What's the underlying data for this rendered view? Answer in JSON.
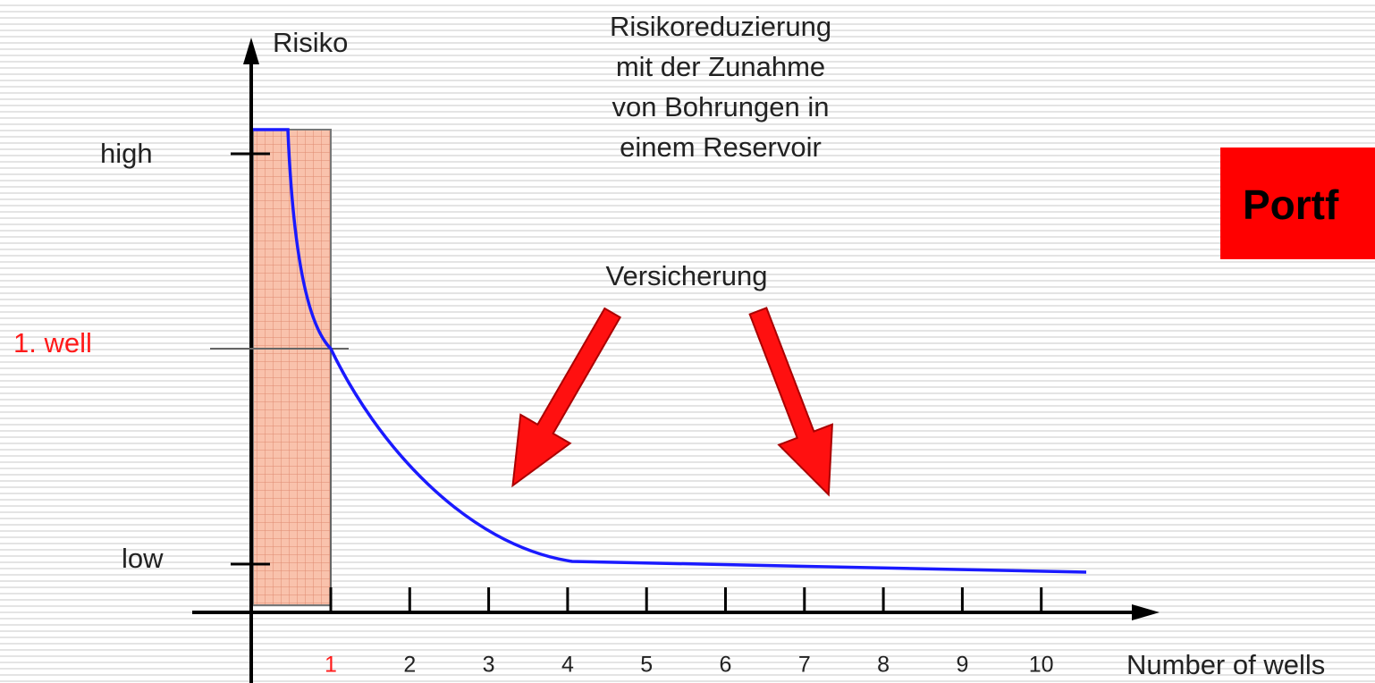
{
  "axis": {
    "y_label": "Risiko",
    "y_high": "high",
    "y_low": "low",
    "first_well": "1.  well",
    "x_label": "Number of wells",
    "x_ticks": [
      1,
      2,
      3,
      4,
      5,
      6,
      7,
      8,
      9,
      10
    ]
  },
  "annotation": {
    "title_lines": [
      "Risikoreduzierung",
      "mit der Zunahme",
      "von Bohrungen in",
      "einem Reservoir"
    ],
    "arrow_label": "Versicherung"
  },
  "banner": "Portf"
}
